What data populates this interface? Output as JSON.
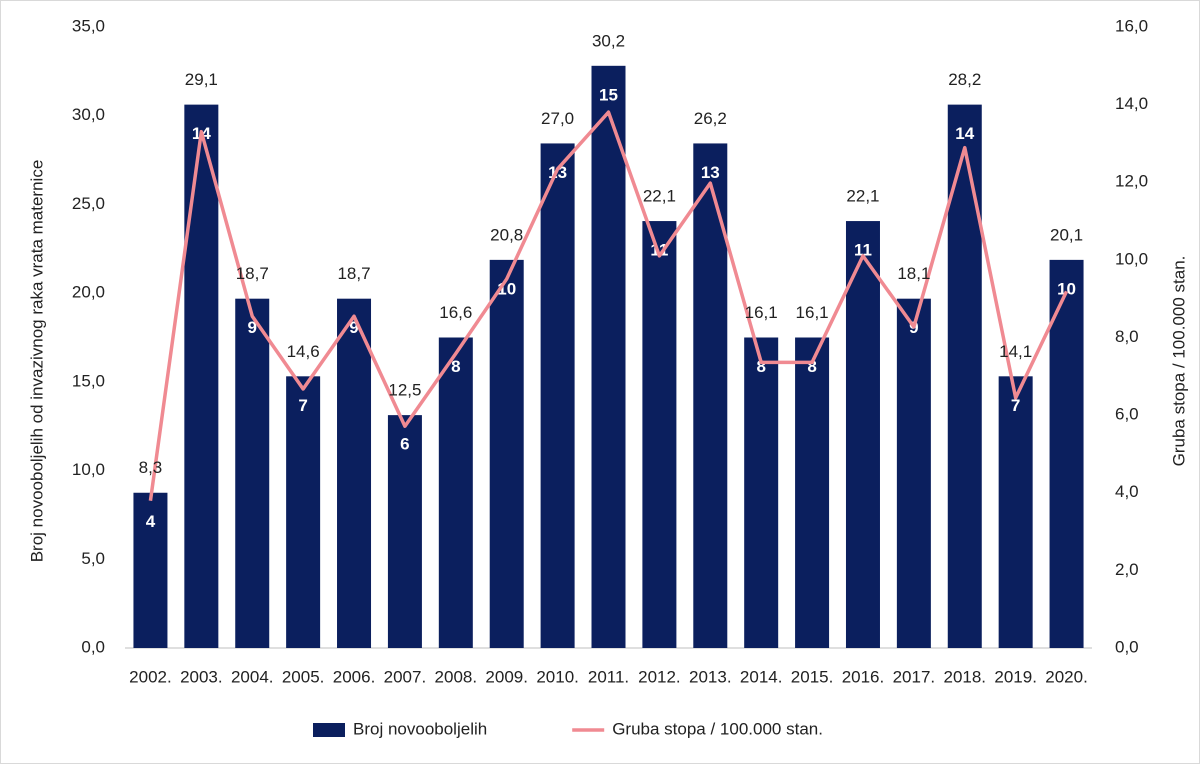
{
  "chart_data": {
    "type": "bar_line",
    "y_label": "Broj novooboljelih od invazivnog raka vrata maternice",
    "y2_label": "Gruba stopa / 100.000 stan.",
    "categories": [
      "2002.",
      "2003.",
      "2004.",
      "2005.",
      "2006.",
      "2007.",
      "2008.",
      "2009.",
      "2010.",
      "2011.",
      "2012.",
      "2013.",
      "2014.",
      "2015.",
      "2016.",
      "2017.",
      "2018.",
      "2019.",
      "2020."
    ],
    "series": [
      {
        "name": "Broj novooboljelih",
        "color": "#0b1f5e",
        "axis": "y2",
        "type": "bar",
        "values": [
          4,
          14,
          9,
          7,
          9,
          6,
          8,
          10,
          13,
          15,
          11,
          13,
          8,
          8,
          11,
          9,
          14,
          7,
          10
        ]
      },
      {
        "name": "Gruba stopa / 100.000 stan.",
        "color": "#f08a92",
        "type": "line",
        "values": [
          8.3,
          29.1,
          18.7,
          14.6,
          18.7,
          12.5,
          16.6,
          20.8,
          27.0,
          30.2,
          22.1,
          26.2,
          16.1,
          16.1,
          22.1,
          18.1,
          28.2,
          14.1,
          20.1
        ],
        "value_labels": [
          "8,3",
          "29,1",
          "18,7",
          "14,6",
          "18,7",
          "12,5",
          "16,6",
          "20,8",
          "27,0",
          "30,2",
          "22,1",
          "26,2",
          "16,1",
          "16,1",
          "22,1",
          "18,1",
          "28,2",
          "14,1",
          "20,1"
        ]
      }
    ],
    "ylim": [
      0,
      35
    ],
    "yticks": [
      {
        "value": 0,
        "label": "0,0"
      },
      {
        "value": 5,
        "label": "5,0"
      },
      {
        "value": 10,
        "label": "10,0"
      },
      {
        "value": 15,
        "label": "15,0"
      },
      {
        "value": 20,
        "label": "20,0"
      },
      {
        "value": 25,
        "label": "25,0"
      },
      {
        "value": 30,
        "label": "30,0"
      },
      {
        "value": 35,
        "label": "35,0"
      }
    ],
    "y2lim": [
      0,
      16
    ],
    "y2ticks": [
      {
        "value": 0,
        "label": "0,0"
      },
      {
        "value": 2,
        "label": "2,0"
      },
      {
        "value": 4,
        "label": "4,0"
      },
      {
        "value": 6,
        "label": "6,0"
      },
      {
        "value": 8,
        "label": "8,0"
      },
      {
        "value": 10,
        "label": "10,0"
      },
      {
        "value": 12,
        "label": "12,0"
      },
      {
        "value": 14,
        "label": "14,0"
      },
      {
        "value": 16,
        "label": "16,0"
      }
    ],
    "grid": false,
    "legend": "bottom"
  }
}
